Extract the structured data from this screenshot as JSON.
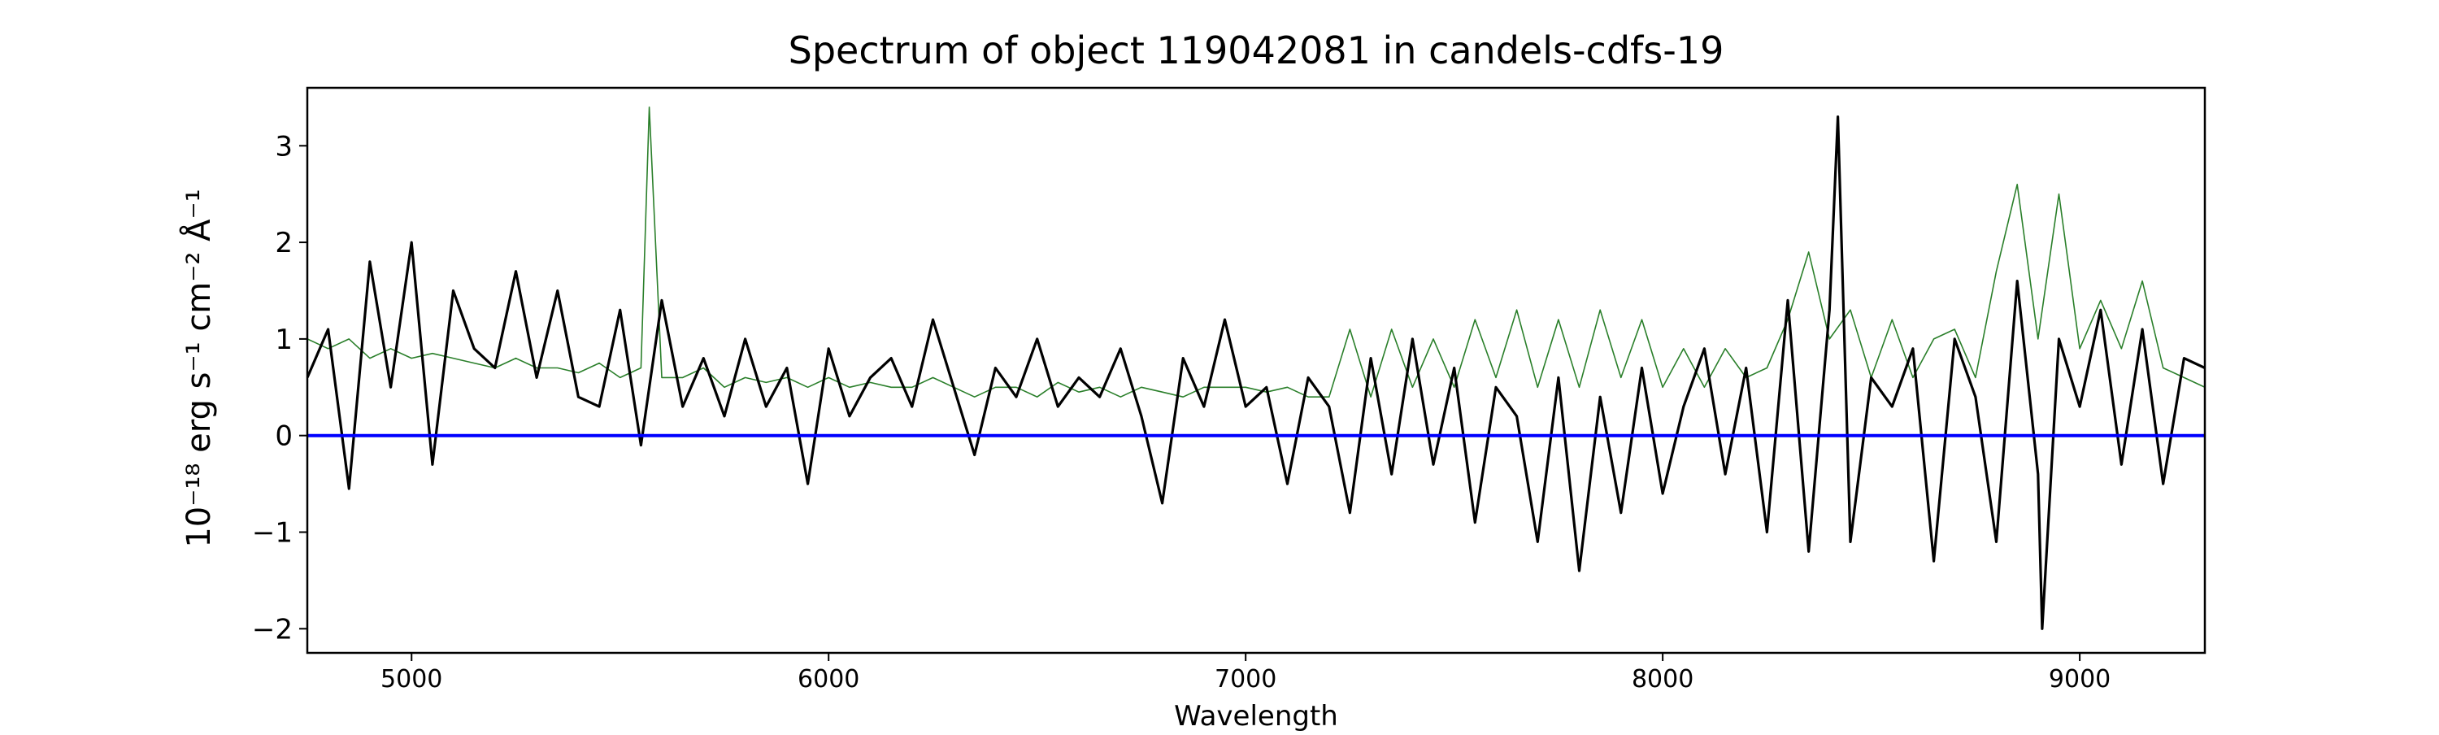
{
  "chart_data": {
    "type": "line",
    "title": "Spectrum of object 119042081 in candels-cdfs-19",
    "xlabel": "Wavelength",
    "ylabel": "10⁻¹⁸ erg s⁻¹ cm⁻² Å⁻¹",
    "xlim": [
      4750,
      9300
    ],
    "ylim": [
      -2.25,
      3.6
    ],
    "xticks": [
      5000,
      6000,
      7000,
      8000,
      9000
    ],
    "yticks": [
      -2,
      -1,
      0,
      1,
      2,
      3
    ],
    "grid": false,
    "legend": "none",
    "series": [
      {
        "role": "flux",
        "color": "#000000",
        "x": [
          4750,
          4800,
          4850,
          4900,
          4950,
          5000,
          5050,
          5100,
          5150,
          5200,
          5250,
          5300,
          5350,
          5400,
          5450,
          5500,
          5550,
          5600,
          5650,
          5700,
          5750,
          5800,
          5850,
          5900,
          5950,
          6000,
          6050,
          6100,
          6150,
          6200,
          6250,
          6300,
          6350,
          6400,
          6450,
          6500,
          6550,
          6600,
          6650,
          6700,
          6750,
          6800,
          6850,
          6900,
          6950,
          7000,
          7050,
          7100,
          7150,
          7200,
          7250,
          7300,
          7350,
          7400,
          7450,
          7500,
          7550,
          7600,
          7650,
          7700,
          7750,
          7800,
          7850,
          7900,
          7950,
          8000,
          8050,
          8100,
          8150,
          8200,
          8250,
          8300,
          8350,
          8400,
          8420,
          8450,
          8500,
          8550,
          8600,
          8650,
          8700,
          8750,
          8800,
          8850,
          8900,
          8910,
          8950,
          9000,
          9050,
          9100,
          9150,
          9200,
          9250,
          9300
        ],
        "y": [
          0.6,
          1.1,
          -0.55,
          1.8,
          0.5,
          2.0,
          -0.3,
          1.5,
          0.9,
          0.7,
          1.7,
          0.6,
          1.5,
          0.4,
          0.3,
          1.3,
          -0.1,
          1.4,
          0.3,
          0.8,
          0.2,
          1.0,
          0.3,
          0.7,
          -0.5,
          0.9,
          0.2,
          0.6,
          0.8,
          0.3,
          1.2,
          0.5,
          -0.2,
          0.7,
          0.4,
          1.0,
          0.3,
          0.6,
          0.4,
          0.9,
          0.2,
          -0.7,
          0.8,
          0.3,
          1.2,
          0.3,
          0.5,
          -0.5,
          0.6,
          0.3,
          -0.8,
          0.8,
          -0.4,
          1.0,
          -0.3,
          0.7,
          -0.9,
          0.5,
          0.2,
          -1.1,
          0.6,
          -1.4,
          0.4,
          -0.8,
          0.7,
          -0.6,
          0.3,
          0.9,
          -0.4,
          0.7,
          -1.0,
          1.4,
          -1.2,
          1.3,
          3.3,
          -1.1,
          0.6,
          0.3,
          0.9,
          -1.3,
          1.0,
          0.4,
          -1.1,
          1.6,
          -0.4,
          -2.0,
          1.0,
          0.3,
          1.3,
          -0.3,
          1.1,
          -0.5,
          0.8,
          0.7
        ]
      },
      {
        "role": "model",
        "color": "#2a7f2a",
        "x": [
          4750,
          4800,
          4850,
          4900,
          4950,
          5000,
          5050,
          5100,
          5150,
          5200,
          5250,
          5300,
          5350,
          5400,
          5450,
          5500,
          5550,
          5570,
          5600,
          5650,
          5700,
          5750,
          5800,
          5850,
          5900,
          5950,
          6000,
          6050,
          6100,
          6150,
          6200,
          6250,
          6300,
          6350,
          6400,
          6450,
          6500,
          6550,
          6600,
          6650,
          6700,
          6750,
          6800,
          6850,
          6900,
          6950,
          7000,
          7050,
          7100,
          7150,
          7200,
          7250,
          7300,
          7350,
          7400,
          7450,
          7500,
          7550,
          7600,
          7650,
          7700,
          7750,
          7800,
          7850,
          7900,
          7950,
          8000,
          8050,
          8100,
          8150,
          8200,
          8250,
          8300,
          8350,
          8400,
          8450,
          8500,
          8550,
          8600,
          8650,
          8700,
          8750,
          8800,
          8850,
          8900,
          8950,
          9000,
          9050,
          9100,
          9150,
          9200,
          9250,
          9300
        ],
        "y": [
          1.0,
          0.9,
          1.0,
          0.8,
          0.9,
          0.8,
          0.85,
          0.8,
          0.75,
          0.7,
          0.8,
          0.7,
          0.7,
          0.65,
          0.75,
          0.6,
          0.7,
          3.4,
          0.6,
          0.6,
          0.7,
          0.5,
          0.6,
          0.55,
          0.6,
          0.5,
          0.6,
          0.5,
          0.55,
          0.5,
          0.5,
          0.6,
          0.5,
          0.4,
          0.5,
          0.5,
          0.4,
          0.55,
          0.45,
          0.5,
          0.4,
          0.5,
          0.45,
          0.4,
          0.5,
          0.5,
          0.5,
          0.45,
          0.5,
          0.4,
          0.4,
          1.1,
          0.4,
          1.1,
          0.5,
          1.0,
          0.5,
          1.2,
          0.6,
          1.3,
          0.5,
          1.2,
          0.5,
          1.3,
          0.6,
          1.2,
          0.5,
          0.9,
          0.5,
          0.9,
          0.6,
          0.7,
          1.2,
          1.9,
          1.0,
          1.3,
          0.6,
          1.2,
          0.6,
          1.0,
          1.1,
          0.6,
          1.7,
          2.6,
          1.0,
          2.5,
          0.9,
          1.4,
          0.9,
          1.6,
          0.7,
          0.6,
          0.5
        ]
      },
      {
        "role": "zero-line",
        "color": "#0000ff",
        "x": [
          4750,
          9300
        ],
        "y": [
          0,
          0
        ]
      }
    ]
  }
}
